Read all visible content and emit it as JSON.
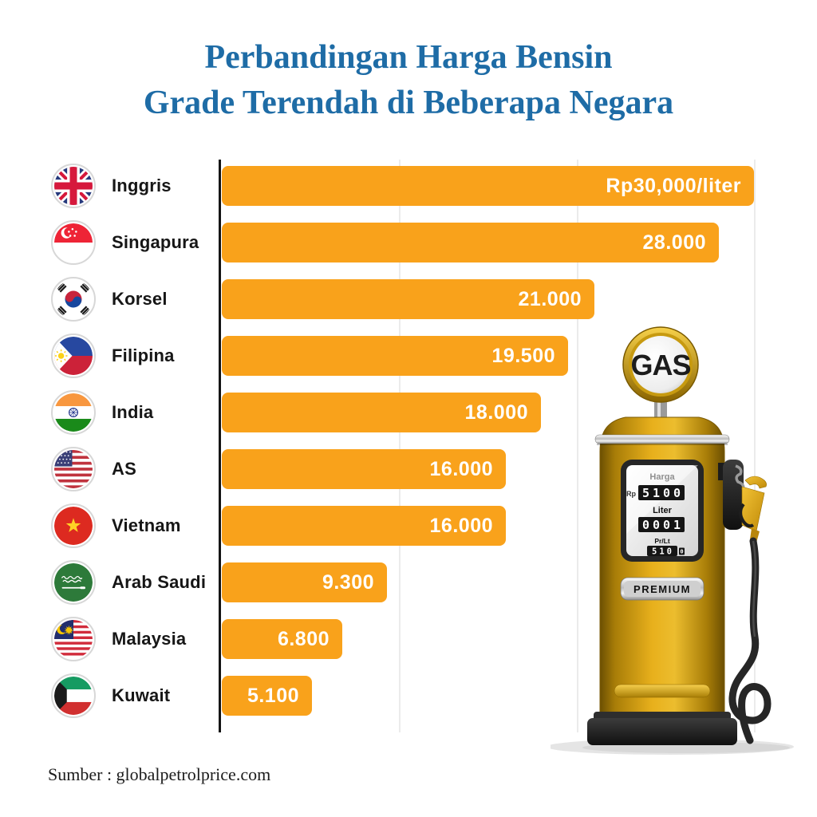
{
  "title": {
    "line1": "Perbandingan Harga Bensin",
    "line2": "Grade Terendah di Beberapa Negara"
  },
  "source": "Sumber : globalpetrolprice.com",
  "colors": {
    "bar": "#F9A21B",
    "title": "#1E6CA6",
    "axis": "#141414",
    "gridline": "#EBEBEB",
    "value_text": "#FFFFFF",
    "label_text": "#161616"
  },
  "chart_data": {
    "type": "bar",
    "orientation": "horizontal",
    "title": "Perbandingan Harga Bensin Grade Terendah di Beberapa Negara",
    "unit": "Rupiah per liter",
    "categories": [
      "Inggris",
      "Singapura",
      "Korsel",
      "Filipina",
      "India",
      "AS",
      "Vietnam",
      "Arab Saudi",
      "Malaysia",
      "Kuwait"
    ],
    "values": [
      30000,
      28000,
      21000,
      19500,
      18000,
      16000,
      16000,
      9300,
      6800,
      5100
    ],
    "value_labels": [
      "Rp30,000/liter",
      "28.000",
      "21.000",
      "19.500",
      "18.000",
      "16.000",
      "16.000",
      "9.300",
      "6.800",
      "5.100"
    ],
    "xlim": [
      0,
      30000
    ],
    "gridlines": [
      10000,
      20000,
      30000
    ],
    "legend": "none",
    "flag_icons": [
      "uk-flag-icon",
      "singapore-flag-icon",
      "south-korea-flag-icon",
      "philippines-flag-icon",
      "india-flag-icon",
      "usa-flag-icon",
      "vietnam-flag-icon",
      "saudi-arabia-flag-icon",
      "malaysia-flag-icon",
      "kuwait-flag-icon"
    ]
  },
  "pump": {
    "sign": "GAS",
    "plate": "PREMIUM",
    "display": {
      "harga_label": "Harga",
      "currency": "Rp",
      "price": "5100",
      "liter_label": "Liter",
      "liter_value": "0001",
      "prlt_label": "Pr/Lt",
      "prlt_value": "510",
      "prlt_extra": "0"
    }
  }
}
